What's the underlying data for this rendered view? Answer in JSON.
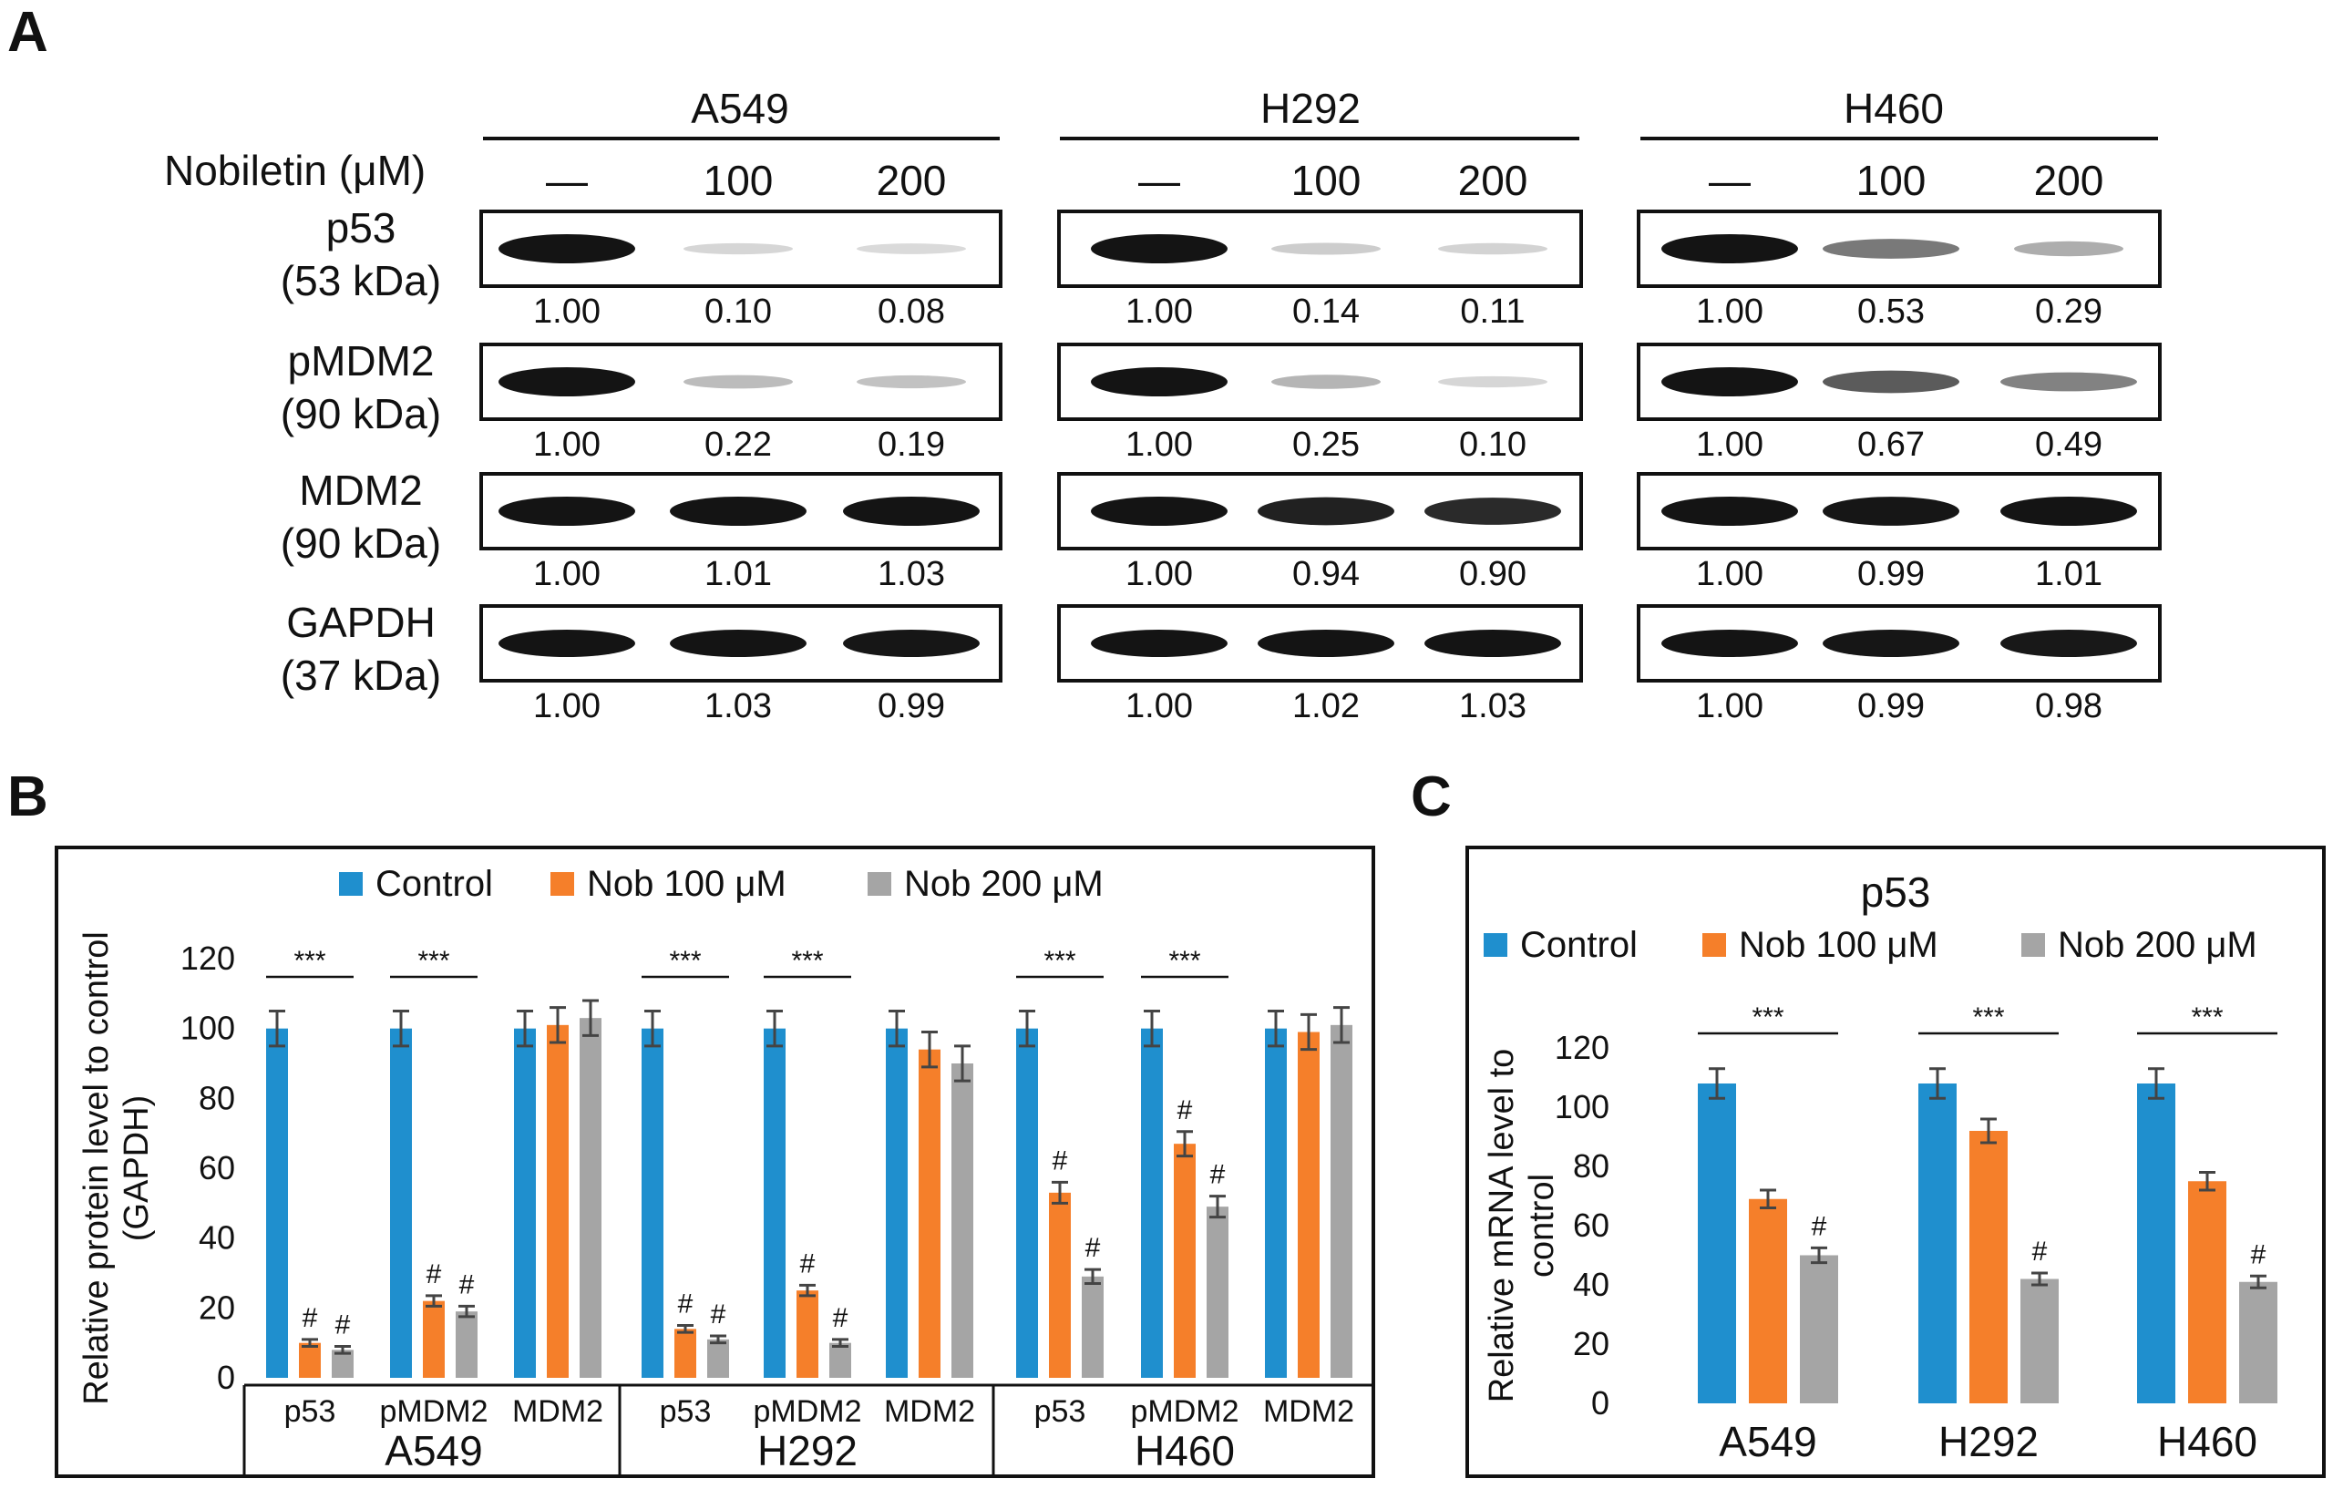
{
  "panels": {
    "A": "A",
    "B": "B",
    "C": "C"
  },
  "western_blot": {
    "treatment_label": "Nobiletin (μM)",
    "cell_lines": [
      "A549",
      "H292",
      "H460"
    ],
    "doses": [
      "—",
      "100",
      "200"
    ],
    "proteins": [
      {
        "name": "p53",
        "kda": "(53 kDa)",
        "quant": [
          [
            "1.00",
            "0.10",
            "0.08"
          ],
          [
            "1.00",
            "0.14",
            "0.11"
          ],
          [
            "1.00",
            "0.53",
            "0.29"
          ]
        ]
      },
      {
        "name": "pMDM2",
        "kda": "(90 kDa)",
        "quant": [
          [
            "1.00",
            "0.22",
            "0.19"
          ],
          [
            "1.00",
            "0.25",
            "0.10"
          ],
          [
            "1.00",
            "0.67",
            "0.49"
          ]
        ]
      },
      {
        "name": "MDM2",
        "kda": "(90 kDa)",
        "quant": [
          [
            "1.00",
            "1.01",
            "1.03"
          ],
          [
            "1.00",
            "0.94",
            "0.90"
          ],
          [
            "1.00",
            "0.99",
            "1.01"
          ]
        ]
      },
      {
        "name": "GAPDH",
        "kda": "(37 kDa)",
        "quant": [
          [
            "1.00",
            "1.03",
            "0.99"
          ],
          [
            "1.00",
            "1.02",
            "1.03"
          ],
          [
            "1.00",
            "0.99",
            "0.98"
          ]
        ]
      }
    ]
  },
  "chart_data": [
    {
      "type": "bar",
      "panel": "B",
      "title": "",
      "ylabel_lines": [
        "Relative protein level to control",
        "(GAPDH)"
      ],
      "ylim": [
        0,
        120
      ],
      "yticks": [
        0,
        20,
        40,
        60,
        80,
        100,
        120
      ],
      "legend": [
        "Control",
        "Nob 100 μM",
        "Nob 200 μM"
      ],
      "colors": [
        "#1f8fce",
        "#f57f2a",
        "#a5a5a5"
      ],
      "groups": [
        "A549",
        "H292",
        "H460"
      ],
      "categories": [
        "p53",
        "pMDM2",
        "MDM2",
        "p53",
        "pMDM2",
        "MDM2",
        "p53",
        "pMDM2",
        "MDM2"
      ],
      "series": [
        {
          "name": "Control",
          "values": [
            100,
            100,
            100,
            100,
            100,
            100,
            100,
            100,
            100
          ]
        },
        {
          "name": "Nob 100 μM",
          "values": [
            10,
            22,
            101,
            14,
            25,
            94,
            53,
            67,
            99
          ]
        },
        {
          "name": "Nob 200 μM",
          "values": [
            8,
            19,
            103,
            11,
            10,
            90,
            29,
            49,
            101
          ]
        }
      ],
      "errors": [
        [
          5,
          5,
          5,
          5,
          5,
          5,
          5,
          5,
          5
        ],
        [
          1,
          1.5,
          5,
          1,
          1.5,
          5,
          3,
          3.5,
          5
        ],
        [
          1,
          1.5,
          5,
          1,
          1,
          5,
          2,
          3,
          5
        ]
      ],
      "significance": [
        {
          "category_index": 0,
          "bar_label": "***",
          "marks": [
            "",
            "#",
            "#"
          ]
        },
        {
          "category_index": 1,
          "bar_label": "***",
          "marks": [
            "",
            "#",
            "#"
          ]
        },
        {
          "category_index": 3,
          "bar_label": "***",
          "marks": [
            "",
            "#",
            "#"
          ]
        },
        {
          "category_index": 4,
          "bar_label": "***",
          "marks": [
            "",
            "#",
            "#"
          ]
        },
        {
          "category_index": 6,
          "bar_label": "***",
          "marks": [
            "",
            "#",
            "#"
          ]
        },
        {
          "category_index": 7,
          "bar_label": "***",
          "marks": [
            "",
            "#",
            "#"
          ]
        }
      ]
    },
    {
      "type": "bar",
      "panel": "C",
      "title": "p53",
      "ylabel_lines": [
        "Relative mRNA level to",
        "control"
      ],
      "ylim": [
        0,
        120
      ],
      "yticks": [
        0,
        20,
        40,
        60,
        80,
        100,
        120
      ],
      "legend": [
        "Control",
        "Nob 100 μM",
        "Nob 200 μM"
      ],
      "colors": [
        "#1f8fce",
        "#f57f2a",
        "#a5a5a5"
      ],
      "categories": [
        "A549",
        "H292",
        "H460"
      ],
      "series": [
        {
          "name": "Control",
          "values": [
            108,
            108,
            108
          ]
        },
        {
          "name": "Nob 100 μM",
          "values": [
            69,
            92,
            75
          ]
        },
        {
          "name": "Nob 200 μM",
          "values": [
            50,
            42,
            41
          ]
        }
      ],
      "errors": [
        [
          5,
          5,
          5
        ],
        [
          3,
          4,
          3
        ],
        [
          2.5,
          2,
          2
        ]
      ],
      "significance": [
        {
          "category_index": 0,
          "bar_label": "***",
          "marks": [
            "",
            "",
            "#"
          ]
        },
        {
          "category_index": 1,
          "bar_label": "***",
          "marks": [
            "",
            "",
            "#"
          ]
        },
        {
          "category_index": 2,
          "bar_label": "***",
          "marks": [
            "",
            "",
            "#"
          ]
        }
      ]
    }
  ]
}
